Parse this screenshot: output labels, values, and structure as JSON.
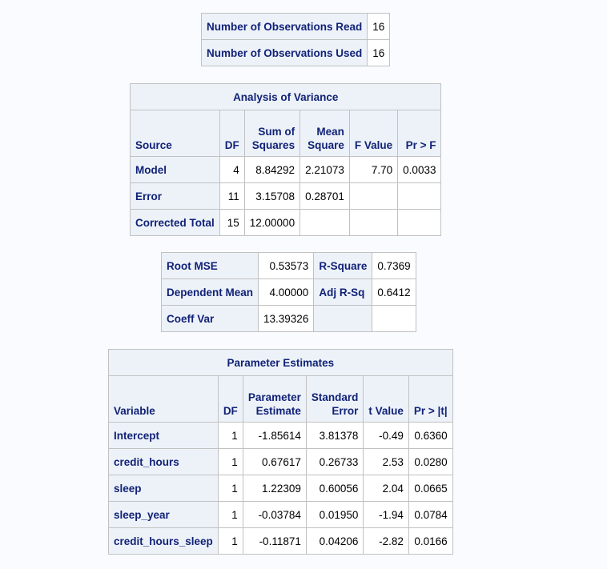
{
  "observations": {
    "rows": [
      {
        "label": "Number of Observations Read",
        "value": "16"
      },
      {
        "label": "Number of Observations Used",
        "value": "16"
      }
    ]
  },
  "anova": {
    "title": "Analysis of Variance",
    "headers": {
      "source": "Source",
      "df": "DF",
      "ss_line1": "Sum of",
      "ss_line2": "Squares",
      "ms_line1": "Mean",
      "ms_line2": "Square",
      "f": "F Value",
      "p": "Pr > F"
    },
    "rows": [
      {
        "source": "Model",
        "df": "4",
        "ss": "8.84292",
        "ms": "2.21073",
        "f": "7.70",
        "p": "0.0033"
      },
      {
        "source": "Error",
        "df": "11",
        "ss": "3.15708",
        "ms": "0.28701",
        "f": "",
        "p": ""
      },
      {
        "source": "Corrected Total",
        "df": "15",
        "ss": "12.00000",
        "ms": "",
        "f": "",
        "p": ""
      }
    ]
  },
  "fit": {
    "rows": [
      {
        "label1": "Root MSE",
        "value1": "0.53573",
        "label2": "R-Square",
        "value2": "0.7369"
      },
      {
        "label1": "Dependent Mean",
        "value1": "4.00000",
        "label2": "Adj R-Sq",
        "value2": "0.6412"
      },
      {
        "label1": "Coeff Var",
        "value1": "13.39326",
        "label2": "",
        "value2": ""
      }
    ]
  },
  "params": {
    "title": "Parameter Estimates",
    "headers": {
      "variable": "Variable",
      "df": "DF",
      "est_line1": "Parameter",
      "est_line2": "Estimate",
      "se_line1": "Standard",
      "se_line2": "Error",
      "t": "t Value",
      "p": "Pr > |t|"
    },
    "rows": [
      {
        "variable": "Intercept",
        "df": "1",
        "est": "-1.85614",
        "se": "3.81378",
        "t": "-0.49",
        "p": "0.6360"
      },
      {
        "variable": "credit_hours",
        "df": "1",
        "est": "0.67617",
        "se": "0.26733",
        "t": "2.53",
        "p": "0.0280"
      },
      {
        "variable": "sleep",
        "df": "1",
        "est": "1.22309",
        "se": "0.60056",
        "t": "2.04",
        "p": "0.0665"
      },
      {
        "variable": "sleep_year",
        "df": "1",
        "est": "-0.03784",
        "se": "0.01950",
        "t": "-1.94",
        "p": "0.0784"
      },
      {
        "variable": "credit_hours_sleep",
        "df": "1",
        "est": "-0.11871",
        "se": "0.04206",
        "t": "-2.82",
        "p": "0.0166"
      }
    ]
  }
}
